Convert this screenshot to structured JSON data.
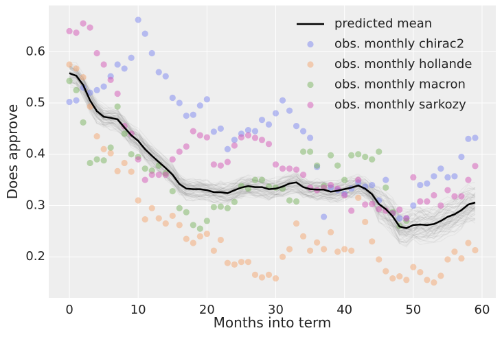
{
  "chart_data": {
    "type": "scatter",
    "xlabel": "Months into term",
    "ylabel": "Does approve",
    "xlim": [
      -3,
      62
    ],
    "ylim": [
      0.12,
      0.69
    ],
    "xticks": [
      0,
      10,
      20,
      30,
      40,
      50,
      60
    ],
    "yticks": [
      0.2,
      0.3,
      0.4,
      0.5,
      0.6
    ],
    "grid": true,
    "legend_position": "top-right",
    "colors": {
      "background": "#eeeeee",
      "grid": "#ffffff",
      "mean": "#000000",
      "band": "#555555",
      "chirac2": "#7b85f0",
      "hollande": "#f3a56f",
      "macron": "#79b45f",
      "sarkozy": "#d456b6"
    },
    "predicted_mean": {
      "name": "predicted mean",
      "x": [
        0,
        1,
        2,
        3,
        4,
        5,
        6,
        7,
        8,
        9,
        10,
        11,
        12,
        13,
        14,
        15,
        16,
        17,
        18,
        19,
        20,
        21,
        22,
        23,
        24,
        25,
        26,
        27,
        28,
        29,
        30,
        31,
        32,
        33,
        34,
        35,
        36,
        37,
        38,
        39,
        40,
        41,
        42,
        43,
        44,
        45,
        46,
        47,
        48,
        49,
        50,
        51,
        52,
        53,
        54,
        55,
        56,
        57,
        58,
        59
      ],
      "y": [
        0.558,
        0.553,
        0.535,
        0.505,
        0.484,
        0.473,
        0.471,
        0.468,
        0.452,
        0.437,
        0.426,
        0.41,
        0.397,
        0.385,
        0.373,
        0.36,
        0.342,
        0.333,
        0.332,
        0.332,
        0.33,
        0.326,
        0.326,
        0.324,
        0.33,
        0.335,
        0.338,
        0.336,
        0.336,
        0.332,
        0.333,
        0.337,
        0.343,
        0.345,
        0.336,
        0.332,
        0.331,
        0.331,
        0.327,
        0.329,
        0.332,
        0.335,
        0.339,
        0.333,
        0.322,
        0.303,
        0.293,
        0.279,
        0.259,
        0.256,
        0.262,
        0.263,
        0.262,
        0.264,
        0.27,
        0.278,
        0.283,
        0.291,
        0.302,
        0.306
      ]
    },
    "series": [
      {
        "name": "obs. monthly chirac2",
        "x": [
          0,
          1,
          2,
          3,
          4,
          5,
          6,
          7,
          8,
          9,
          10,
          11,
          12,
          13,
          14,
          15,
          16,
          17,
          18,
          19,
          20,
          21,
          22,
          23,
          24,
          25,
          26,
          27,
          28,
          29,
          30,
          31,
          32,
          33,
          34,
          35,
          36,
          37,
          38,
          39,
          40,
          41,
          42,
          43,
          44,
          45,
          46,
          47,
          48,
          49,
          50,
          51,
          52,
          53,
          54,
          55,
          56,
          57,
          58,
          59
        ],
        "y": [
          0.502,
          0.505,
          0.53,
          0.52,
          0.525,
          0.532,
          0.552,
          0.575,
          0.567,
          0.588,
          0.662,
          0.635,
          0.597,
          0.56,
          0.552,
          0.51,
          0.5,
          0.475,
          0.477,
          0.495,
          0.507,
          0.444,
          0.45,
          0.41,
          0.428,
          0.44,
          0.447,
          0.445,
          0.467,
          0.458,
          0.48,
          0.505,
          0.485,
          0.455,
          0.445,
          0.432,
          0.375,
          0.278,
          0.335,
          0.33,
          0.323,
          0.333,
          0.345,
          0.337,
          0.34,
          0.31,
          0.35,
          0.285,
          0.275,
          0.275,
          0.3,
          0.34,
          0.343,
          0.357,
          0.372,
          0.355,
          0.357,
          0.395,
          0.43,
          0.432
        ]
      },
      {
        "name": "obs. monthly hollande",
        "x": [
          0,
          1,
          2,
          3,
          4,
          5,
          6,
          7,
          8,
          9,
          10,
          11,
          12,
          13,
          14,
          15,
          16,
          17,
          18,
          19,
          20,
          21,
          22,
          23,
          24,
          25,
          26,
          27,
          28,
          29,
          30,
          31,
          32,
          33,
          34,
          35,
          36,
          37,
          38,
          39,
          40,
          41,
          42,
          43,
          44,
          45,
          46,
          47,
          48,
          49,
          50,
          51,
          52,
          53,
          54,
          55,
          56,
          57,
          58,
          59
        ],
        "y": [
          0.575,
          0.567,
          0.55,
          0.493,
          0.435,
          0.41,
          0.402,
          0.367,
          0.383,
          0.366,
          0.31,
          0.273,
          0.295,
          0.275,
          0.265,
          0.28,
          0.262,
          0.235,
          0.227,
          0.24,
          0.245,
          0.212,
          0.233,
          0.188,
          0.185,
          0.19,
          0.19,
          0.165,
          0.16,
          0.165,
          0.158,
          0.2,
          0.215,
          0.265,
          0.24,
          0.212,
          0.228,
          0.215,
          0.248,
          0.21,
          0.215,
          0.212,
          0.315,
          0.268,
          0.23,
          0.195,
          0.172,
          0.158,
          0.162,
          0.155,
          0.18,
          0.17,
          0.155,
          0.15,
          0.163,
          0.195,
          0.21,
          0.197,
          0.227,
          0.213
        ]
      },
      {
        "name": "obs. monthly macron",
        "x": [
          0,
          1,
          2,
          3,
          4,
          5,
          6,
          7,
          8,
          9,
          10,
          11,
          12,
          13,
          14,
          15,
          16,
          17,
          18,
          19,
          20,
          21,
          22,
          23,
          24,
          25,
          26,
          27,
          28,
          29,
          30,
          31,
          32,
          33,
          34,
          35,
          36,
          37,
          38,
          39,
          40,
          41,
          42,
          43,
          44,
          45,
          46,
          47,
          48,
          49
        ],
        "y": [
          0.543,
          0.525,
          0.462,
          0.383,
          0.39,
          0.388,
          0.413,
          0.493,
          0.44,
          0.4,
          0.395,
          0.372,
          0.368,
          0.378,
          0.363,
          0.328,
          0.295,
          0.287,
          0.262,
          0.255,
          0.27,
          0.297,
          0.298,
          0.295,
          0.307,
          0.338,
          0.333,
          0.35,
          0.35,
          0.337,
          0.335,
          0.333,
          0.31,
          0.308,
          0.405,
          0.405,
          0.378,
          0.338,
          0.398,
          0.378,
          0.35,
          0.398,
          0.4,
          0.395,
          0.39,
          0.405,
          0.335,
          0.287,
          0.26,
          0.27
        ]
      },
      {
        "name": "obs. monthly sarkozy",
        "x": [
          0,
          1,
          2,
          3,
          4,
          5,
          6,
          7,
          8,
          9,
          10,
          11,
          12,
          13,
          14,
          15,
          16,
          17,
          18,
          19,
          20,
          21,
          22,
          23,
          24,
          25,
          26,
          27,
          28,
          29,
          30,
          31,
          32,
          33,
          34,
          35,
          36,
          37,
          38,
          39,
          40,
          41,
          42,
          43,
          44,
          45,
          46,
          47,
          48,
          49,
          50,
          51,
          52,
          53,
          54,
          55,
          56,
          57,
          58,
          59
        ],
        "y": [
          0.64,
          0.637,
          0.655,
          0.647,
          0.597,
          0.575,
          0.545,
          0.518,
          0.455,
          0.44,
          0.39,
          0.35,
          0.36,
          0.36,
          0.36,
          0.39,
          0.405,
          0.415,
          0.445,
          0.437,
          0.433,
          0.38,
          0.378,
          0.385,
          0.417,
          0.433,
          0.437,
          0.432,
          0.428,
          0.42,
          0.38,
          0.372,
          0.372,
          0.37,
          0.36,
          0.335,
          0.33,
          0.335,
          0.34,
          0.333,
          0.32,
          0.29,
          0.35,
          0.302,
          0.303,
          0.293,
          0.29,
          0.285,
          0.292,
          0.275,
          0.355,
          0.308,
          0.308,
          0.32,
          0.3,
          0.33,
          0.318,
          0.318,
          0.35,
          0.377
        ]
      }
    ]
  }
}
